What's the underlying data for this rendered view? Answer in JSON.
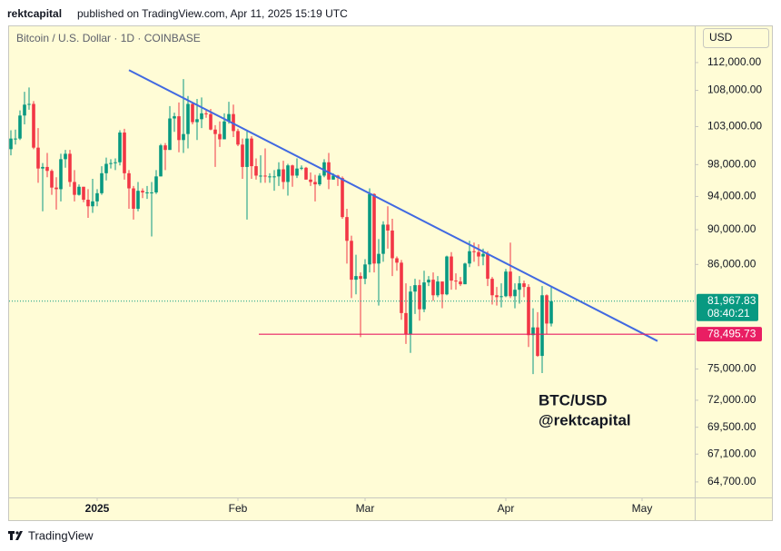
{
  "header": {
    "user": "rektcapital",
    "published": "published on TradingView.com, Apr 11, 2025 15:19 UTC"
  },
  "footer": {
    "brand": "TradingView"
  },
  "chart_data": {
    "type": "candlestick",
    "title": "Bitcoin / U.S. Dollar · 1D · COINBASE",
    "currency": "USD",
    "log_scale": true,
    "up_color": "#089981",
    "down_color": "#f23645",
    "open": [
      100000,
      101400,
      101400,
      104500,
      106000,
      106100,
      100200,
      97500,
      97700,
      97200,
      95100,
      94900,
      98700,
      99400,
      95800,
      94200,
      95200,
      93600,
      92800,
      93400,
      94400,
      96900,
      98100,
      98200,
      98300,
      102200,
      96900,
      95000,
      92500,
      94700,
      94500,
      94500,
      94500,
      96500,
      100500,
      99900,
      104100,
      104400,
      101200,
      102000,
      106100,
      103600,
      104000,
      104800,
      104700,
      102600,
      102000,
      101300,
      103700,
      104700,
      102400,
      100600,
      97700,
      101400,
      97800,
      96600,
      96600,
      96500,
      96500,
      96500,
      97400,
      95800,
      97900,
      96600,
      97500,
      97600,
      96100,
      95800,
      95500,
      96600,
      98300,
      96100,
      96600,
      96300,
      91500,
      88700,
      84300,
      84700,
      84400,
      86000,
      94300,
      86100,
      87200,
      90600,
      89900,
      86700,
      86200,
      80700,
      78500,
      83000,
      83700,
      81100,
      84000,
      84300,
      82600,
      84100,
      82700,
      86900,
      84200,
      84100,
      83800,
      86100,
      87500,
      87400,
      86900,
      87200,
      84400,
      82600,
      82400,
      82500,
      85200,
      82500,
      83200,
      83900,
      83500,
      78400,
      79200,
      76300,
      82600,
      79600
    ],
    "high": [
      102500,
      102600,
      105200,
      107800,
      108400,
      106500,
      102800,
      98200,
      99500,
      97400,
      96400,
      99400,
      99900,
      99900,
      97300,
      95500,
      95200,
      94900,
      96200,
      94900,
      97800,
      98900,
      98700,
      98800,
      102500,
      102700,
      97300,
      95300,
      95800,
      95000,
      95300,
      95800,
      97300,
      100700,
      100800,
      105800,
      104900,
      106300,
      109600,
      107200,
      106300,
      106800,
      107000,
      105300,
      105400,
      103200,
      103700,
      104800,
      106400,
      106000,
      102700,
      101400,
      102500,
      101700,
      98800,
      99200,
      100100,
      96900,
      97300,
      98300,
      98500,
      98100,
      98000,
      98800,
      97900,
      97700,
      97000,
      96700,
      96900,
      98700,
      99500,
      96900,
      96700,
      96500,
      92500,
      89300,
      87100,
      85100,
      86600,
      95000,
      94400,
      88900,
      91000,
      92800,
      91300,
      86900,
      86500,
      83900,
      83600,
      84400,
      84300,
      85300,
      84700,
      85100,
      84700,
      84100,
      87000,
      87400,
      85000,
      84600,
      86200,
      88700,
      88500,
      88300,
      87800,
      87500,
      84600,
      83500,
      83900,
      85500,
      88500,
      83900,
      84700,
      84200,
      83800,
      81200,
      80800,
      83600,
      82700,
      83500
    ],
    "low": [
      99200,
      100600,
      101200,
      103300,
      105300,
      100000,
      95700,
      92200,
      96400,
      94200,
      92400,
      93400,
      97600,
      95200,
      93400,
      94100,
      93300,
      91400,
      92000,
      92800,
      94200,
      96000,
      97500,
      97300,
      97900,
      96100,
      92500,
      91200,
      92200,
      93800,
      93700,
      89200,
      94300,
      96500,
      97300,
      99900,
      102300,
      99600,
      99500,
      100100,
      103300,
      101200,
      102800,
      104200,
      102500,
      97700,
      100300,
      101300,
      103400,
      101600,
      100400,
      96200,
      91200,
      96200,
      96100,
      95700,
      95700,
      95700,
      94700,
      95300,
      94900,
      94100,
      95200,
      96300,
      97300,
      96100,
      95300,
      93400,
      95300,
      96400,
      94900,
      96100,
      95300,
      91300,
      86100,
      82300,
      82700,
      78200,
      83800,
      85100,
      85100,
      81500,
      86300,
      87800,
      84700,
      85300,
      80000,
      77500,
      76600,
      80600,
      79900,
      80800,
      83600,
      82000,
      82400,
      81200,
      82600,
      83200,
      83200,
      83600,
      83800,
      85700,
      86300,
      85800,
      85900,
      83600,
      81600,
      81500,
      81300,
      82400,
      82300,
      81200,
      81700,
      82400,
      77200,
      74500,
      76200,
      74600,
      78500,
      79300
    ],
    "close": [
      101400,
      101400,
      104500,
      106000,
      106100,
      100200,
      97500,
      97700,
      97200,
      95100,
      94900,
      98700,
      99400,
      95800,
      94200,
      95200,
      93600,
      92800,
      93400,
      94400,
      96900,
      98100,
      98200,
      98300,
      102200,
      96900,
      95000,
      92500,
      94700,
      94500,
      94500,
      94500,
      96500,
      100500,
      99900,
      104100,
      104400,
      101200,
      102000,
      106100,
      103600,
      104000,
      104800,
      104700,
      102600,
      102000,
      101300,
      103700,
      104700,
      102400,
      100600,
      97700,
      101400,
      97800,
      96600,
      96600,
      96500,
      96500,
      96500,
      97400,
      95800,
      97900,
      96600,
      97500,
      97600,
      96100,
      95800,
      95500,
      96600,
      98300,
      96100,
      96600,
      96300,
      91500,
      88700,
      84300,
      84700,
      84400,
      86000,
      94300,
      86100,
      87200,
      90600,
      89900,
      86700,
      86200,
      80700,
      78500,
      83000,
      83700,
      81100,
      84000,
      84300,
      82600,
      84100,
      82700,
      86900,
      84200,
      84100,
      83800,
      86100,
      87500,
      87400,
      86900,
      87200,
      84400,
      82600,
      82400,
      82500,
      85200,
      82500,
      83200,
      83900,
      83500,
      78400,
      79200,
      76300,
      82600,
      79600,
      81967.83
    ],
    "xlim": [
      -0.4,
      150.6
    ],
    "xticks": [
      {
        "value": 19,
        "label": "2025"
      },
      {
        "value": 50,
        "label": "Feb"
      },
      {
        "value": 78,
        "label": "Mar"
      },
      {
        "value": 109,
        "label": "Apr"
      },
      {
        "value": 139,
        "label": "May"
      }
    ],
    "ylim": [
      63400,
      117300
    ],
    "yticks": [
      {
        "value": 112000,
        "label": "112,000.00"
      },
      {
        "value": 108000,
        "label": "108,000.00"
      },
      {
        "value": 103000,
        "label": "103,000.00"
      },
      {
        "value": 98000,
        "label": "98,000.00"
      },
      {
        "value": 94000,
        "label": "94,000.00"
      },
      {
        "value": 90000,
        "label": "90,000.00"
      },
      {
        "value": 86000,
        "label": "86,000.00"
      },
      {
        "value": 75000,
        "label": "75,000.00"
      },
      {
        "value": 72000,
        "label": "72,000.00"
      },
      {
        "value": 69500,
        "label": "69,500.00"
      },
      {
        "value": 67100,
        "label": "67,100.00"
      },
      {
        "value": 64700,
        "label": "64,700.00"
      }
    ],
    "last_price": {
      "value": 81967.83,
      "value_label": "81,967.83",
      "countdown": "08:40:21",
      "color": "#089981"
    },
    "hline": {
      "value": 78495.73,
      "value_label": "78,495.73",
      "color": "#e91e63"
    },
    "trendline": {
      "x": [
        26,
        142.4
      ],
      "values": [
        110900,
        77800
      ],
      "color": "#4169e1"
    },
    "annotations": [
      "BTC/USD",
      "@rektcapital"
    ]
  }
}
